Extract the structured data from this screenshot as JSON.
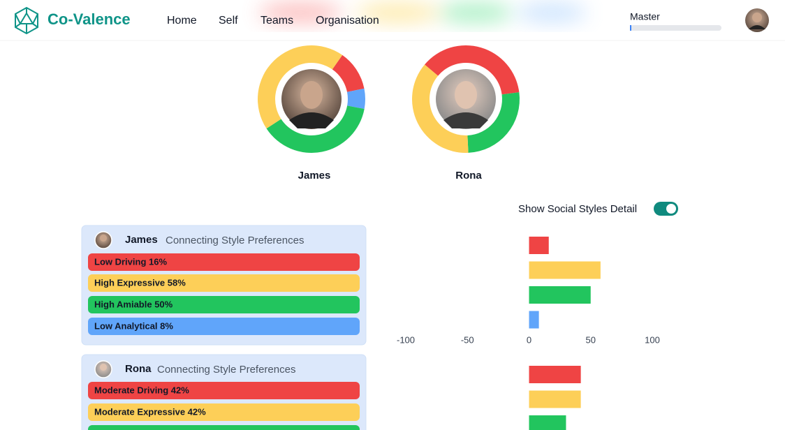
{
  "nav": {
    "brand": "Co-Valence",
    "links": [
      "Home",
      "Self",
      "Teams",
      "Organisation"
    ],
    "user_label": "Master"
  },
  "toggle_label": "Show Social Styles Detail",
  "people": [
    {
      "name": "James",
      "caption": "Connecting Style Preferences",
      "preferences": [
        "Low Driving 16%",
        "High Expressive 58%",
        "High Amiable 50%",
        "Low Analytical 8%"
      ]
    },
    {
      "name": "Rona",
      "caption": "Connecting Style Preferences",
      "preferences": [
        "Moderate Driving 42%",
        "Moderate Expressive 42%"
      ]
    }
  ],
  "chart_data": [
    {
      "type": "donut",
      "title": "James",
      "values": [
        16,
        58,
        50,
        8
      ],
      "colors": [
        "#ef4444",
        "#fdcf58",
        "#22c55e",
        "#60a5fa"
      ]
    },
    {
      "type": "donut",
      "title": "Rona",
      "values": [
        42,
        42,
        30
      ],
      "colors": [
        "#ef4444",
        "#fdcf58",
        "#22c55e"
      ]
    },
    {
      "type": "bar",
      "orientation": "horizontal",
      "values": [
        16,
        58,
        50,
        8
      ],
      "colors": [
        "#ef4444",
        "#fdcf58",
        "#22c55e",
        "#60a5fa"
      ],
      "xlim": [
        -100,
        100
      ],
      "xticks": [
        -100,
        -50,
        0,
        50,
        100
      ]
    },
    {
      "type": "bar",
      "orientation": "horizontal",
      "values": [
        42,
        42,
        30
      ],
      "colors": [
        "#ef4444",
        "#fdcf58",
        "#22c55e"
      ],
      "xlim": [
        -100,
        100
      ]
    }
  ]
}
